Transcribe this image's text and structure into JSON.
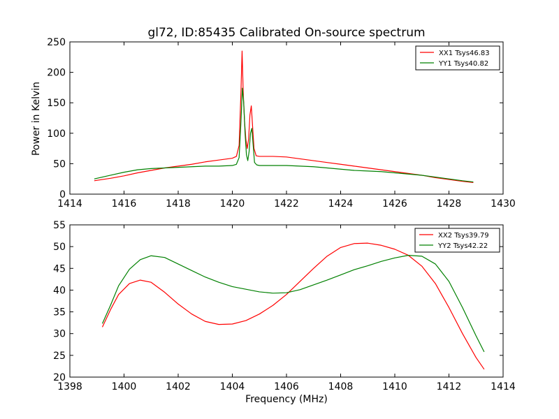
{
  "chart_data": [
    {
      "type": "line",
      "title": "gl72, ID:85435 Calibrated On-source spectrum",
      "xlabel": "",
      "ylabel": "Power in Kelvin",
      "xlim": [
        1414,
        1430
      ],
      "ylim": [
        0,
        250
      ],
      "xticks": [
        1414,
        1416,
        1418,
        1420,
        1422,
        1424,
        1426,
        1428,
        1430
      ],
      "yticks": [
        0,
        50,
        100,
        150,
        200,
        250
      ],
      "legend_position": "top-right",
      "grid": false,
      "series": [
        {
          "name": "XX1 Tsys46.83",
          "color": "#ff0000",
          "x": [
            1414.9,
            1415.5,
            1416.0,
            1416.5,
            1417.0,
            1417.5,
            1418.0,
            1418.5,
            1419.0,
            1419.5,
            1420.0,
            1420.15,
            1420.25,
            1420.32,
            1420.36,
            1420.4,
            1420.45,
            1420.5,
            1420.55,
            1420.6,
            1420.65,
            1420.7,
            1420.75,
            1420.8,
            1420.88,
            1421.0,
            1421.5,
            1422.0,
            1422.5,
            1423.0,
            1423.5,
            1424.0,
            1424.5,
            1425.0,
            1425.5,
            1426.0,
            1426.5,
            1427.0,
            1427.5,
            1428.0,
            1428.5,
            1428.9
          ],
          "values": [
            22,
            26,
            30,
            35,
            39,
            43,
            46,
            49,
            53,
            56,
            59,
            62,
            80,
            170,
            235,
            170,
            120,
            90,
            75,
            90,
            130,
            145,
            110,
            75,
            63,
            62,
            62,
            61,
            58,
            55,
            52,
            49,
            46,
            43,
            40,
            37,
            34,
            31,
            27,
            24,
            21,
            19
          ]
        },
        {
          "name": "YY1 Tsys40.82",
          "color": "#008000",
          "x": [
            1414.9,
            1415.5,
            1416.0,
            1416.5,
            1417.0,
            1417.5,
            1418.0,
            1418.5,
            1419.0,
            1419.5,
            1420.0,
            1420.15,
            1420.25,
            1420.32,
            1420.37,
            1420.42,
            1420.47,
            1420.52,
            1420.57,
            1420.62,
            1420.67,
            1420.72,
            1420.77,
            1420.82,
            1420.9,
            1421.0,
            1421.5,
            1422.0,
            1422.5,
            1423.0,
            1423.5,
            1424.0,
            1424.5,
            1425.0,
            1425.5,
            1426.0,
            1426.5,
            1427.0,
            1427.5,
            1428.0,
            1428.5,
            1428.9
          ],
          "values": [
            25,
            31,
            36,
            40,
            42,
            43,
            44,
            45,
            46,
            46,
            47,
            49,
            60,
            120,
            174,
            150,
            100,
            65,
            55,
            70,
            100,
            108,
            80,
            52,
            48,
            47,
            47,
            47,
            46,
            45,
            43,
            41,
            39,
            38,
            37,
            35,
            33,
            31,
            28,
            25,
            22,
            20
          ]
        }
      ]
    },
    {
      "type": "line",
      "title": "",
      "xlabel": "Frequency (MHz)",
      "ylabel": "",
      "xlim": [
        1398,
        1414
      ],
      "ylim": [
        20,
        55
      ],
      "xticks": [
        1398,
        1400,
        1402,
        1404,
        1406,
        1408,
        1410,
        1412,
        1414
      ],
      "yticks": [
        20,
        25,
        30,
        35,
        40,
        45,
        50,
        55
      ],
      "legend_position": "top-right",
      "grid": false,
      "series": [
        {
          "name": "XX2 Tsys39.79",
          "color": "#ff0000",
          "x": [
            1399.2,
            1399.5,
            1399.8,
            1400.2,
            1400.6,
            1401.0,
            1401.5,
            1402.0,
            1402.5,
            1403.0,
            1403.5,
            1404.0,
            1404.5,
            1405.0,
            1405.5,
            1406.0,
            1406.5,
            1407.0,
            1407.5,
            1408.0,
            1408.5,
            1409.0,
            1409.5,
            1410.0,
            1410.5,
            1411.0,
            1411.5,
            1412.0,
            1412.5,
            1413.0,
            1413.3
          ],
          "values": [
            31.5,
            35.5,
            39,
            41.5,
            42.3,
            41.8,
            39.5,
            36.8,
            34.5,
            32.8,
            32.1,
            32.2,
            33,
            34.5,
            36.5,
            39,
            42,
            45,
            47.8,
            49.8,
            50.7,
            50.8,
            50.3,
            49.4,
            48,
            45.5,
            41.5,
            36,
            30,
            24.5,
            21.8
          ]
        },
        {
          "name": "YY2 Tsys42.22",
          "color": "#008000",
          "x": [
            1399.2,
            1399.5,
            1399.8,
            1400.2,
            1400.6,
            1401.0,
            1401.5,
            1402.0,
            1402.5,
            1403.0,
            1403.5,
            1404.0,
            1404.5,
            1405.0,
            1405.5,
            1406.0,
            1406.5,
            1407.0,
            1407.5,
            1408.0,
            1408.5,
            1409.0,
            1409.5,
            1410.0,
            1410.5,
            1411.0,
            1411.5,
            1412.0,
            1412.5,
            1413.0,
            1413.3
          ],
          "values": [
            32.3,
            36.5,
            41,
            44.8,
            47,
            47.9,
            47.5,
            46,
            44.5,
            43,
            41.8,
            40.8,
            40.2,
            39.6,
            39.3,
            39.4,
            40.1,
            41.2,
            42.3,
            43.5,
            44.7,
            45.6,
            46.6,
            47.4,
            48,
            47.8,
            46,
            42,
            36,
            29.5,
            25.8
          ]
        }
      ]
    }
  ]
}
